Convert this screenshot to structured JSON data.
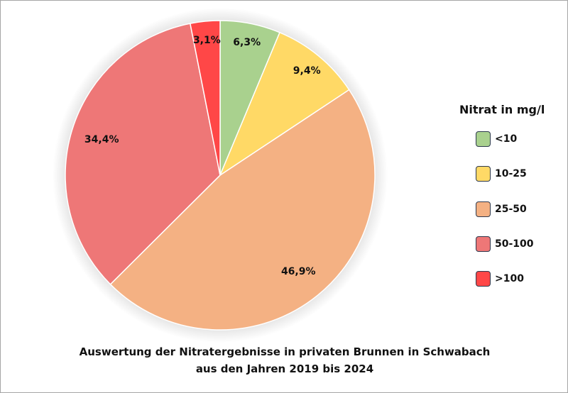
{
  "chart_data": {
    "type": "pie",
    "title": [
      "Auswertung der Nitratergebnisse in privaten Brunnen in Schwabach",
      "aus den Jahren 2019 bis 2024"
    ],
    "legend_title": "Nitrat in mg/l",
    "legend_placement": "right",
    "slices": [
      {
        "category": "<10",
        "value": 6.3,
        "label": "6,3%",
        "color": "#a9d18e"
      },
      {
        "category": "10-25",
        "value": 9.4,
        "label": "9,4%",
        "color": "#ffd966"
      },
      {
        "category": "25-50",
        "value": 46.9,
        "label": "46,9%",
        "color": "#f4b183"
      },
      {
        "category": "50-100",
        "value": 34.4,
        "label": "34,4%",
        "color": "#ee7777"
      },
      {
        "category": ">100",
        "value": 3.1,
        "label": "3,1%",
        "color": "#ff4747"
      }
    ]
  }
}
